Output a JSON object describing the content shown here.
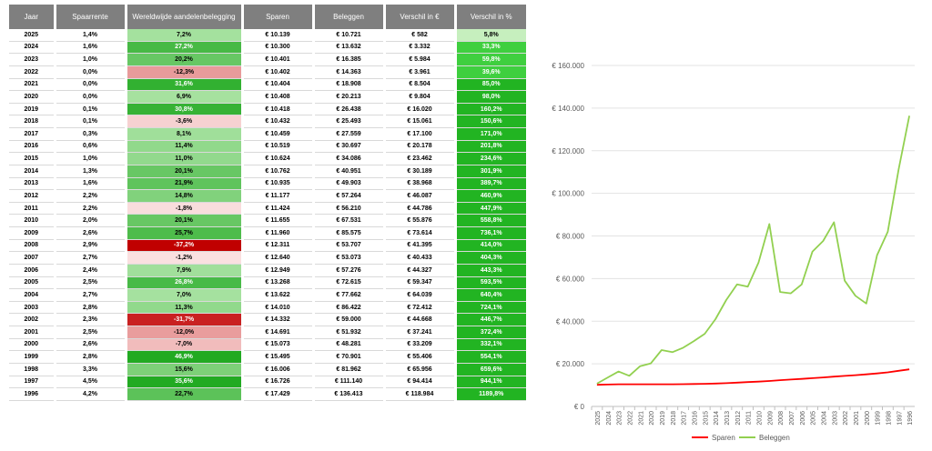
{
  "table": {
    "headers": [
      "Jaar",
      "Spaarrente",
      "Wereldwijde aandelenbelegging",
      "Sparen",
      "Beleggen",
      "Verschil in €",
      "Verschil in %"
    ],
    "rows": [
      [
        "2025",
        "1,4%",
        "7,2%",
        "€ 10.139",
        "€ 10.721",
        "€ 582",
        "5,8%"
      ],
      [
        "2024",
        "1,6%",
        "27,2%",
        "€ 10.300",
        "€ 13.632",
        "€ 3.332",
        "33,3%"
      ],
      [
        "2023",
        "1,0%",
        "20,2%",
        "€ 10.401",
        "€ 16.385",
        "€ 5.984",
        "59,8%"
      ],
      [
        "2022",
        "0,0%",
        "-12,3%",
        "€ 10.402",
        "€ 14.363",
        "€ 3.961",
        "39,6%"
      ],
      [
        "2021",
        "0,0%",
        "31,6%",
        "€ 10.404",
        "€ 18.908",
        "€ 8.504",
        "85,0%"
      ],
      [
        "2020",
        "0,0%",
        "6,9%",
        "€ 10.408",
        "€ 20.213",
        "€ 9.804",
        "98,0%"
      ],
      [
        "2019",
        "0,1%",
        "30,8%",
        "€ 10.418",
        "€ 26.438",
        "€ 16.020",
        "160,2%"
      ],
      [
        "2018",
        "0,1%",
        "-3,6%",
        "€ 10.432",
        "€ 25.493",
        "€ 15.061",
        "150,6%"
      ],
      [
        "2017",
        "0,3%",
        "8,1%",
        "€ 10.459",
        "€ 27.559",
        "€ 17.100",
        "171,0%"
      ],
      [
        "2016",
        "0,6%",
        "11,4%",
        "€ 10.519",
        "€ 30.697",
        "€ 20.178",
        "201,8%"
      ],
      [
        "2015",
        "1,0%",
        "11,0%",
        "€ 10.624",
        "€ 34.086",
        "€ 23.462",
        "234,6%"
      ],
      [
        "2014",
        "1,3%",
        "20,1%",
        "€ 10.762",
        "€ 40.951",
        "€ 30.189",
        "301,9%"
      ],
      [
        "2013",
        "1,6%",
        "21,9%",
        "€ 10.935",
        "€ 49.903",
        "€ 38.968",
        "389,7%"
      ],
      [
        "2012",
        "2,2%",
        "14,8%",
        "€ 11.177",
        "€ 57.264",
        "€ 46.087",
        "460,9%"
      ],
      [
        "2011",
        "2,2%",
        "-1,8%",
        "€ 11.424",
        "€ 56.210",
        "€ 44.786",
        "447,9%"
      ],
      [
        "2010",
        "2,0%",
        "20,1%",
        "€ 11.655",
        "€ 67.531",
        "€ 55.876",
        "558,8%"
      ],
      [
        "2009",
        "2,6%",
        "25,7%",
        "€ 11.960",
        "€ 85.575",
        "€ 73.614",
        "736,1%"
      ],
      [
        "2008",
        "2,9%",
        "-37,2%",
        "€ 12.311",
        "€ 53.707",
        "€ 41.395",
        "414,0%"
      ],
      [
        "2007",
        "2,7%",
        "-1,2%",
        "€ 12.640",
        "€ 53.073",
        "€ 40.433",
        "404,3%"
      ],
      [
        "2006",
        "2,4%",
        "7,9%",
        "€ 12.949",
        "€ 57.276",
        "€ 44.327",
        "443,3%"
      ],
      [
        "2005",
        "2,5%",
        "26,8%",
        "€ 13.268",
        "€ 72.615",
        "€ 59.347",
        "593,5%"
      ],
      [
        "2004",
        "2,7%",
        "7,0%",
        "€ 13.622",
        "€ 77.662",
        "€ 64.039",
        "640,4%"
      ],
      [
        "2003",
        "2,8%",
        "11,3%",
        "€ 14.010",
        "€ 86.422",
        "€ 72.412",
        "724,1%"
      ],
      [
        "2002",
        "2,3%",
        "-31,7%",
        "€ 14.332",
        "€ 59.000",
        "€ 44.668",
        "446,7%"
      ],
      [
        "2001",
        "2,5%",
        "-12,0%",
        "€ 14.691",
        "€ 51.932",
        "€ 37.241",
        "372,4%"
      ],
      [
        "2000",
        "2,6%",
        "-7,0%",
        "€ 15.073",
        "€ 48.281",
        "€ 33.209",
        "332,1%"
      ],
      [
        "1999",
        "2,8%",
        "46,9%",
        "€ 15.495",
        "€ 70.901",
        "€ 55.406",
        "554,1%"
      ],
      [
        "1998",
        "3,3%",
        "15,6%",
        "€ 16.006",
        "€ 81.962",
        "€ 65.956",
        "659,6%"
      ],
      [
        "1997",
        "4,5%",
        "35,6%",
        "€ 16.726",
        "€ 111.140",
        "€ 94.414",
        "944,1%"
      ],
      [
        "1996",
        "4,2%",
        "22,7%",
        "€ 17.429",
        "€ 136.413",
        "€ 118.984",
        "1189,8%"
      ]
    ]
  },
  "chart_data": {
    "type": "line",
    "x": [
      "2025",
      "2024",
      "2023",
      "2022",
      "2021",
      "2020",
      "2019",
      "2018",
      "2017",
      "2016",
      "2015",
      "2014",
      "2013",
      "2012",
      "2011",
      "2010",
      "2009",
      "2008",
      "2007",
      "2006",
      "2005",
      "2004",
      "2003",
      "2002",
      "2001",
      "2000",
      "1999",
      "1998",
      "1997",
      "1996"
    ],
    "series": [
      {
        "name": "Sparen",
        "color": "#ff0000",
        "values": [
          10139,
          10300,
          10401,
          10402,
          10404,
          10408,
          10418,
          10432,
          10459,
          10519,
          10624,
          10762,
          10935,
          11177,
          11424,
          11655,
          11960,
          12311,
          12640,
          12949,
          13268,
          13622,
          14010,
          14332,
          14691,
          15073,
          15495,
          16006,
          16726,
          17429
        ]
      },
      {
        "name": "Beleggen",
        "color": "#92d050",
        "values": [
          10721,
          13632,
          16385,
          14363,
          18908,
          20213,
          26438,
          25493,
          27559,
          30697,
          34086,
          40951,
          49903,
          57264,
          56210,
          67531,
          85575,
          53707,
          53073,
          57276,
          72615,
          77662,
          86422,
          59000,
          51932,
          48281,
          70901,
          81962,
          111140,
          136413
        ]
      }
    ],
    "yticks": [
      0,
      20000,
      40000,
      60000,
      80000,
      100000,
      120000,
      140000,
      160000
    ],
    "ytick_labels": [
      "€ 0",
      "€ 20.000",
      "€ 40.000",
      "€ 60.000",
      "€ 80.000",
      "€ 100.000",
      "€ 120.000",
      "€ 140.000",
      "€ 160.000"
    ],
    "ylim": [
      0,
      160000
    ],
    "grid": true,
    "legend": "bottom",
    "title": "",
    "xlabel": "",
    "ylabel": ""
  }
}
